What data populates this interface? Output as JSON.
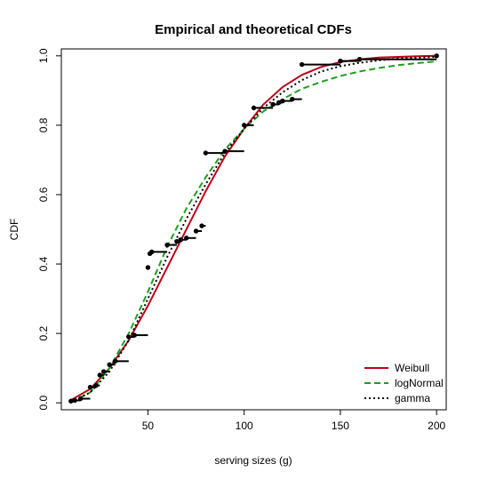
{
  "chart_data": {
    "type": "line",
    "title": "Empirical and theoretical CDFs",
    "xlabel": "serving sizes (g)",
    "ylabel": "CDF",
    "xlim": [
      5,
      205
    ],
    "ylim": [
      -0.02,
      1.02
    ],
    "x_ticks": [
      50,
      100,
      150,
      200
    ],
    "y_ticks": [
      0.0,
      0.2,
      0.4,
      0.6,
      0.8,
      1.0
    ],
    "y_tick_labels": [
      "0.0",
      "0.2",
      "0.4",
      "0.6",
      "0.8",
      "1.0"
    ],
    "grid": false,
    "legend_position": "bottom-right",
    "empirical": [
      {
        "left": 10,
        "right": 12,
        "y": 0.005
      },
      {
        "left": 12,
        "right": 15,
        "y": 0.007
      },
      {
        "left": 15,
        "right": 20,
        "y": 0.012
      },
      {
        "left": 20,
        "right": 23,
        "y": 0.045
      },
      {
        "left": 23,
        "right": 25,
        "y": 0.05
      },
      {
        "left": 25,
        "right": 27,
        "y": 0.08
      },
      {
        "left": 27,
        "right": 30,
        "y": 0.09
      },
      {
        "left": 30,
        "right": 33,
        "y": 0.11
      },
      {
        "left": 33,
        "right": 40,
        "y": 0.12
      },
      {
        "left": 40,
        "right": 43,
        "y": 0.19
      },
      {
        "left": 43,
        "right": 50,
        "y": 0.195
      },
      {
        "left": 50,
        "right": 51,
        "y": 0.39
      },
      {
        "left": 51,
        "right": 52,
        "y": 0.43
      },
      {
        "left": 52,
        "right": 60,
        "y": 0.435
      },
      {
        "left": 60,
        "right": 65,
        "y": 0.455
      },
      {
        "left": 65,
        "right": 67,
        "y": 0.465
      },
      {
        "left": 67,
        "right": 70,
        "y": 0.47
      },
      {
        "left": 70,
        "right": 75,
        "y": 0.475
      },
      {
        "left": 75,
        "right": 78,
        "y": 0.495
      },
      {
        "left": 78,
        "right": 80,
        "y": 0.51
      },
      {
        "left": 80,
        "right": 90,
        "y": 0.72
      },
      {
        "left": 90,
        "right": 100,
        "y": 0.725
      },
      {
        "left": 100,
        "right": 105,
        "y": 0.8
      },
      {
        "left": 105,
        "right": 115,
        "y": 0.85
      },
      {
        "left": 115,
        "right": 118,
        "y": 0.86
      },
      {
        "left": 118,
        "right": 120,
        "y": 0.865
      },
      {
        "left": 120,
        "right": 125,
        "y": 0.87
      },
      {
        "left": 125,
        "right": 130,
        "y": 0.875
      },
      {
        "left": 130,
        "right": 150,
        "y": 0.975
      },
      {
        "left": 150,
        "right": 160,
        "y": 0.985
      },
      {
        "left": 160,
        "right": 200,
        "y": 0.99
      },
      {
        "left": 200,
        "right": 200,
        "y": 1.0
      }
    ],
    "series": [
      {
        "name": "Weibull",
        "color": "#c0001a",
        "style": "solid",
        "x": [
          10,
          20,
          30,
          40,
          50,
          60,
          70,
          80,
          90,
          100,
          110,
          120,
          130,
          140,
          150,
          160,
          170,
          180,
          190,
          200
        ],
        "y": [
          0.008,
          0.04,
          0.1,
          0.18,
          0.28,
          0.39,
          0.5,
          0.61,
          0.71,
          0.79,
          0.86,
          0.91,
          0.945,
          0.968,
          0.982,
          0.99,
          0.995,
          0.997,
          0.999,
          1.0
        ]
      },
      {
        "name": "logNormal",
        "color": "#1f9e1f",
        "style": "dashed",
        "x": [
          10,
          20,
          30,
          40,
          50,
          60,
          70,
          80,
          90,
          100,
          110,
          120,
          130,
          140,
          150,
          160,
          170,
          180,
          190,
          200
        ],
        "y": [
          0.002,
          0.03,
          0.1,
          0.2,
          0.32,
          0.45,
          0.56,
          0.65,
          0.73,
          0.79,
          0.84,
          0.875,
          0.905,
          0.925,
          0.942,
          0.955,
          0.965,
          0.973,
          0.979,
          0.984
        ]
      },
      {
        "name": "gamma",
        "color": "#000000",
        "style": "dotted",
        "x": [
          10,
          20,
          30,
          40,
          50,
          60,
          70,
          80,
          90,
          100,
          110,
          120,
          130,
          140,
          150,
          160,
          170,
          180,
          190,
          200
        ],
        "y": [
          0.003,
          0.03,
          0.09,
          0.18,
          0.3,
          0.42,
          0.53,
          0.63,
          0.72,
          0.79,
          0.85,
          0.895,
          0.93,
          0.955,
          0.97,
          0.98,
          0.987,
          0.992,
          0.995,
          0.997
        ]
      }
    ]
  }
}
